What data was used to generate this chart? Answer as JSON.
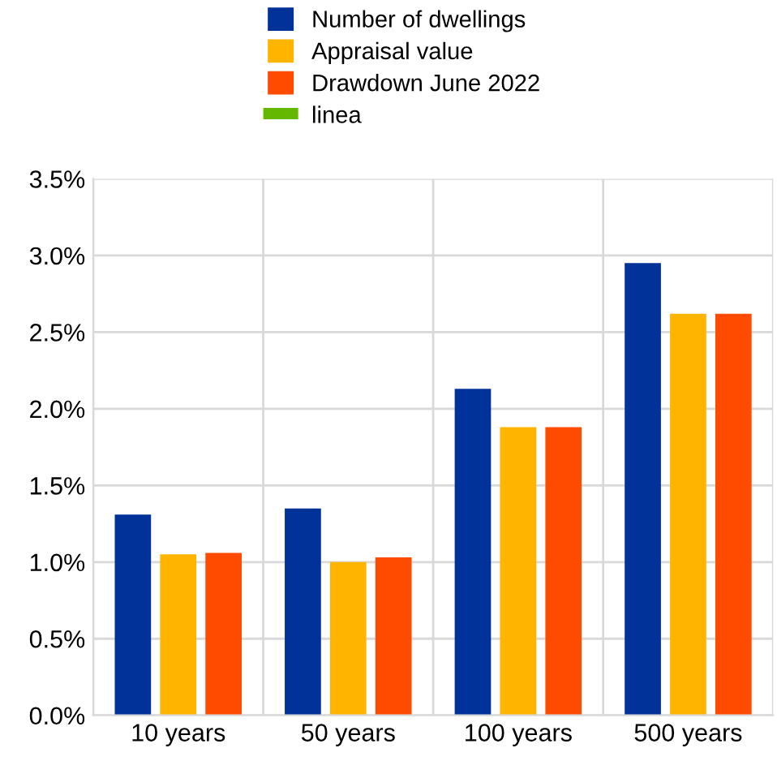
{
  "chart_data": {
    "type": "bar",
    "categories": [
      "10 years",
      "50 years",
      "100 years",
      "500 years"
    ],
    "series": [
      {
        "name": "Number of dwellings",
        "color": "#003299",
        "values": [
          1.31,
          1.35,
          2.13,
          2.95
        ]
      },
      {
        "name": "Appraisal value",
        "color": "#ffb400",
        "values": [
          1.05,
          1.0,
          1.88,
          2.62
        ]
      },
      {
        "name": "Drawdown June 2022",
        "color": "#ff4b00",
        "values": [
          1.06,
          1.03,
          1.88,
          2.62
        ]
      },
      {
        "name": "linea",
        "color": "#65b800",
        "type": "line",
        "values": [
          null,
          null,
          null,
          null
        ]
      }
    ],
    "ylim": [
      0,
      3.5
    ],
    "yticks": [
      {
        "value": 0,
        "label": "0.0%"
      },
      {
        "value": 0.5,
        "label": "0.5%"
      },
      {
        "value": 1.0,
        "label": "1.0%"
      },
      {
        "value": 1.5,
        "label": "1.5%"
      },
      {
        "value": 2.0,
        "label": "2.0%"
      },
      {
        "value": 2.5,
        "label": "2.5%"
      },
      {
        "value": 3.0,
        "label": "3.0%"
      },
      {
        "value": 3.5,
        "label": "3.5%"
      }
    ],
    "grid": true,
    "legend": "top left"
  }
}
